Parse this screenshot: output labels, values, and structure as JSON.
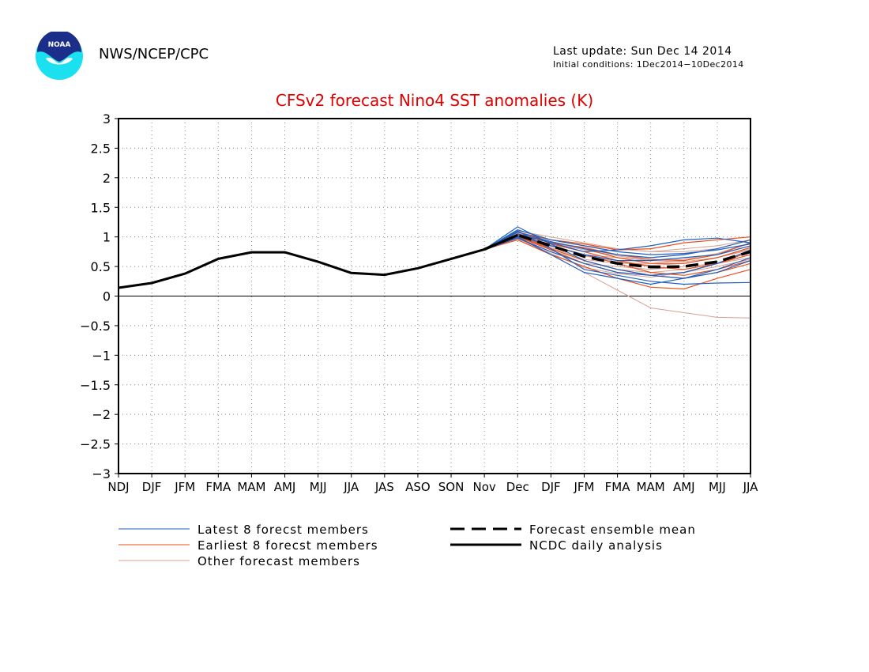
{
  "header": {
    "agency": "NWS/NCEP/CPC",
    "last_update": "Last update: Sun Dec 14 2014",
    "initial_conditions": "Initial conditions: 1Dec2014−10Dec2014",
    "logo_text": "NOAA"
  },
  "colors": {
    "title": "#e00000",
    "latest": "#1f5fbf",
    "earliest": "#e8501e",
    "other": "#d8a090",
    "analysis": "#000000",
    "logo_dark": "#1a2e8a",
    "logo_light": "#1ae0f0"
  },
  "chart_data": {
    "type": "line",
    "title": "CFSv2 forecast Nino4 SST anomalies (K)",
    "xlabel": "",
    "ylabel": "",
    "categories": [
      "NDJ",
      "DJF",
      "JFM",
      "FMA",
      "MAM",
      "AMJ",
      "MJJ",
      "JJA",
      "JAS",
      "ASO",
      "SON",
      "Nov",
      "Dec",
      "DJF",
      "JFM",
      "FMA",
      "MAM",
      "AMJ",
      "MJJ",
      "JJA"
    ],
    "yticks": [
      "3",
      "2.5",
      "2",
      "1.5",
      "1",
      "0.5",
      "0",
      "−0.5",
      "−1",
      "−1.5",
      "−2",
      "−2.5",
      "−3"
    ],
    "ylim": [
      -3,
      3
    ],
    "grid": true,
    "legend": {
      "latest": "Latest 8 forecst members",
      "earliest": "Earliest 8 forecst members",
      "other": "Other forecast members",
      "mean": "Forecast ensemble mean",
      "analysis": "NCDC daily analysis"
    },
    "analysis": {
      "name": "NCDC daily analysis",
      "values": [
        0.14,
        0.22,
        0.38,
        0.63,
        0.74,
        0.74,
        0.58,
        0.39,
        0.36,
        0.47,
        0.63,
        0.79,
        1.03
      ]
    },
    "ensemble_mean": {
      "name": "Forecast ensemble mean",
      "values": [
        0.79,
        1.03,
        0.85,
        0.67,
        0.55,
        0.49,
        0.5,
        0.58,
        0.75
      ]
    },
    "latest_members": [
      [
        0.79,
        1.17,
        0.88,
        0.6,
        0.45,
        0.35,
        0.4,
        0.55,
        0.78
      ],
      [
        0.79,
        1.1,
        0.8,
        0.45,
        0.35,
        0.25,
        0.2,
        0.22,
        0.23
      ],
      [
        0.79,
        1.05,
        0.9,
        0.75,
        0.78,
        0.85,
        0.95,
        0.98,
        0.9
      ],
      [
        0.79,
        1.02,
        0.85,
        0.7,
        0.6,
        0.6,
        0.65,
        0.7,
        0.85
      ],
      [
        0.79,
        0.98,
        0.75,
        0.55,
        0.4,
        0.35,
        0.3,
        0.4,
        0.6
      ],
      [
        0.79,
        1.08,
        0.92,
        0.8,
        0.7,
        0.65,
        0.7,
        0.8,
        0.95
      ],
      [
        0.79,
        1.0,
        0.7,
        0.4,
        0.3,
        0.2,
        0.3,
        0.45,
        0.65
      ],
      [
        0.79,
        1.12,
        0.95,
        0.85,
        0.75,
        0.7,
        0.72,
        0.78,
        0.88
      ]
    ],
    "earliest_members": [
      [
        0.79,
        1.05,
        0.92,
        0.8,
        0.65,
        0.55,
        0.55,
        0.65,
        0.82
      ],
      [
        0.79,
        1.0,
        0.88,
        0.75,
        0.6,
        0.5,
        0.45,
        0.55,
        0.7
      ],
      [
        0.79,
        0.98,
        0.85,
        0.7,
        0.55,
        0.4,
        0.35,
        0.45,
        0.6
      ],
      [
        0.79,
        1.08,
        0.95,
        0.88,
        0.78,
        0.8,
        0.9,
        0.95,
        1.0
      ],
      [
        0.79,
        1.02,
        0.8,
        0.6,
        0.45,
        0.35,
        0.3,
        0.4,
        0.55
      ],
      [
        0.79,
        0.95,
        0.7,
        0.5,
        0.3,
        0.15,
        0.12,
        0.3,
        0.45
      ],
      [
        0.79,
        1.04,
        0.9,
        0.82,
        0.7,
        0.62,
        0.6,
        0.7,
        0.9
      ],
      [
        0.79,
        1.0,
        0.78,
        0.55,
        0.4,
        0.35,
        0.4,
        0.55,
        0.75
      ]
    ],
    "other_members": [
      [
        0.79,
        1.1,
        1.0,
        0.9,
        0.8,
        0.75,
        0.8,
        0.85,
        0.95
      ],
      [
        0.79,
        1.0,
        0.7,
        0.4,
        0.1,
        -0.2,
        -0.28,
        -0.36,
        -0.37
      ],
      [
        0.79,
        1.05,
        0.85,
        0.7,
        0.65,
        0.6,
        0.58,
        0.65,
        0.8
      ],
      [
        0.79,
        1.08,
        0.95,
        0.85,
        0.8,
        0.75,
        0.75,
        0.8,
        0.95
      ],
      [
        0.79,
        0.98,
        0.75,
        0.55,
        0.5,
        0.45,
        0.5,
        0.55,
        0.65
      ],
      [
        0.79,
        1.02,
        0.82,
        0.62,
        0.55,
        0.55,
        0.6,
        0.7,
        0.85
      ],
      [
        0.79,
        1.0,
        0.8,
        0.6,
        0.45,
        0.4,
        0.45,
        0.55,
        0.75
      ],
      [
        0.79,
        1.06,
        0.9,
        0.78,
        0.68,
        0.6,
        0.62,
        0.72,
        0.9
      ],
      [
        0.79,
        1.03,
        0.86,
        0.68,
        0.58,
        0.52,
        0.55,
        0.65,
        0.78
      ],
      [
        0.79,
        0.97,
        0.72,
        0.48,
        0.38,
        0.32,
        0.4,
        0.5,
        0.62
      ]
    ]
  }
}
